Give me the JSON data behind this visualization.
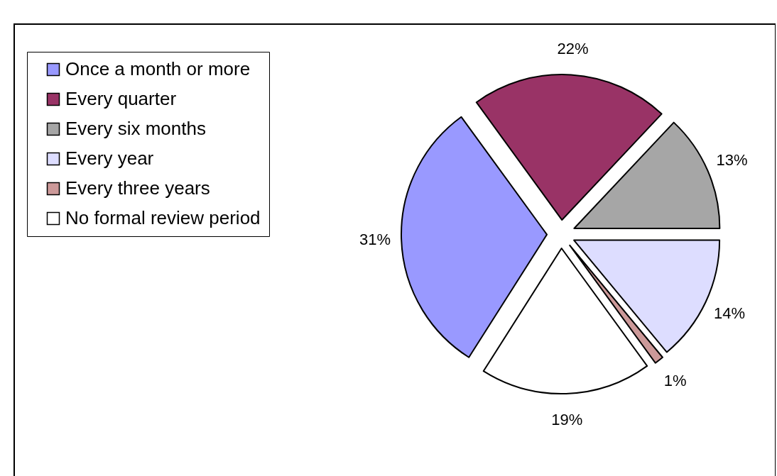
{
  "chart_data": {
    "type": "pie",
    "categories": [
      "Once a month or more",
      "Every quarter",
      "Every six months",
      "Every year",
      "Every three years",
      "No formal review period"
    ],
    "values": [
      31,
      22,
      13,
      14,
      1,
      19
    ],
    "value_labels": [
      "31%",
      "22%",
      "13%",
      "14%",
      "1%",
      "19%"
    ],
    "colors": [
      "#9999ff",
      "#993366",
      "#a6a6a6",
      "#ddddff",
      "#cc9999",
      "#ffffff"
    ],
    "legend": "top left"
  }
}
